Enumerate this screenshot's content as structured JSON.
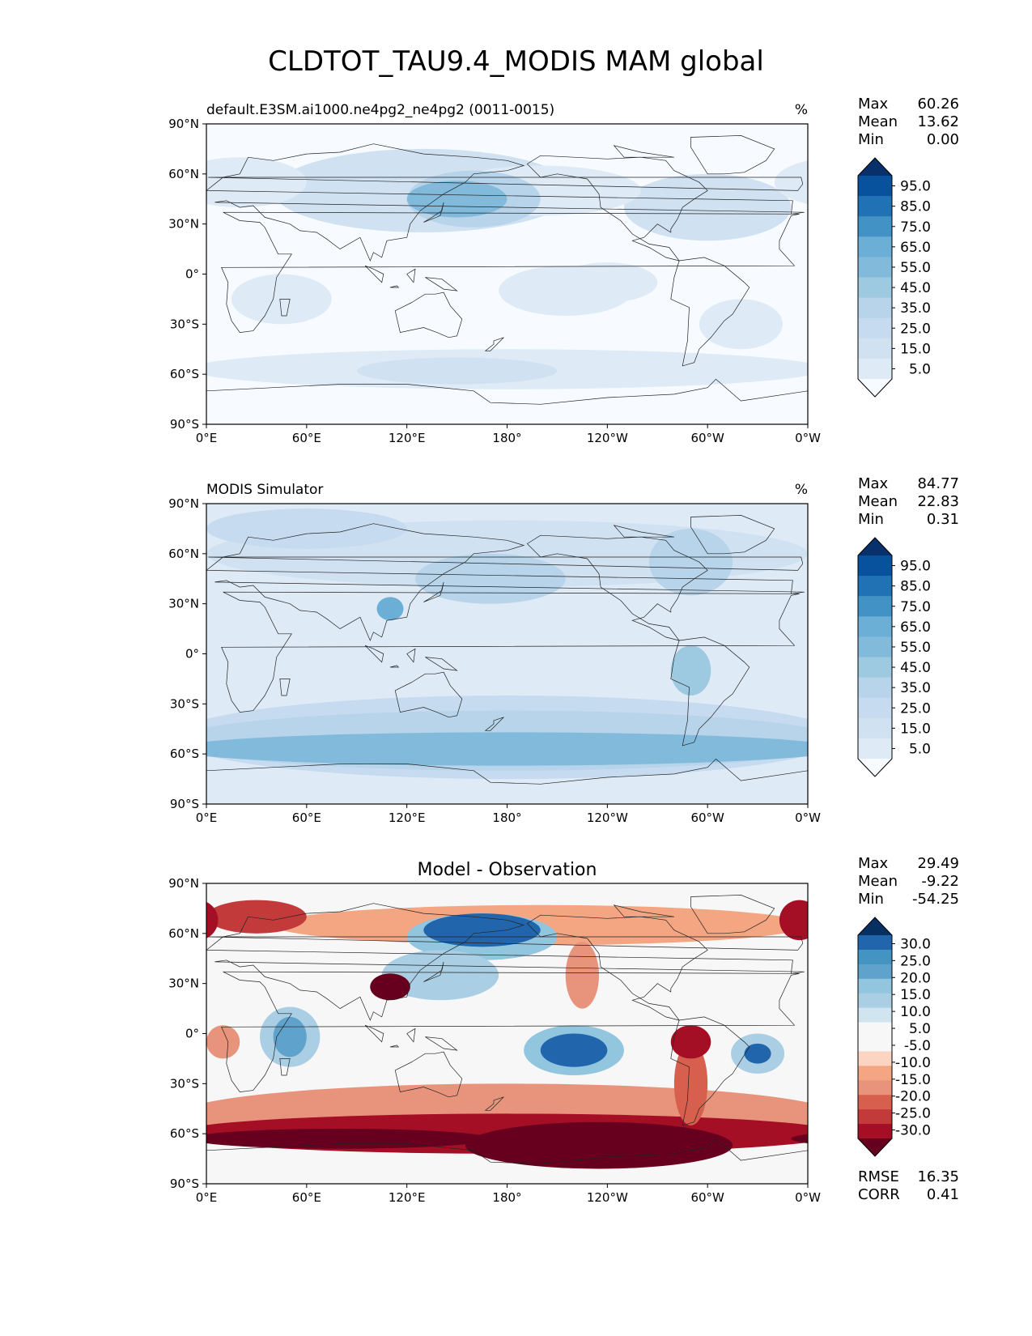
{
  "title": "CLDTOT_TAU9.4_MODIS MAM global",
  "palettes": {
    "blues": [
      "#f7fbff",
      "#deebf7",
      "#d0e1f2",
      "#c6dbef",
      "#b7d4ea",
      "#9ecae1",
      "#82badb",
      "#6baed6",
      "#4292c6",
      "#2171b5",
      "#08519c",
      "#08306b"
    ],
    "diff": [
      "#67001f",
      "#a50f26",
      "#c23a3a",
      "#d6604d",
      "#e8947c",
      "#f4a582",
      "#fbd5c1",
      "#f7f7f7",
      "#f7f7f7",
      "#d1e5f0",
      "#aacfe5",
      "#92c5de",
      "#5fa3cd",
      "#4393c3",
      "#2166ac",
      "#053061"
    ]
  },
  "chart_data": [
    {
      "type": "heatmap",
      "name": "model",
      "left_title": "default.E3SM.ai1000.ne4pg2_ne4pg2 (0011-0015)",
      "units": "%",
      "center_title": "",
      "stats": [
        {
          "label": "Max",
          "value": "60.26"
        },
        {
          "label": "Mean",
          "value": "13.62"
        },
        {
          "label": "Min",
          "value": "0.00"
        }
      ],
      "extra_stats": [],
      "colorbar": {
        "palette": "blues",
        "tick_labels": [
          "95.0",
          "85.0",
          "75.0",
          "65.0",
          "55.0",
          "45.0",
          "35.0",
          "25.0",
          "15.0",
          "5.0"
        ]
      },
      "axes": {
        "xlabels": [
          "0°E",
          "60°E",
          "120°E",
          "180°",
          "120°W",
          "60°W",
          "0°W"
        ],
        "ylabels": [
          "90°N",
          "60°N",
          "30°N",
          "0°",
          "30°S",
          "60°S",
          "90°S"
        ],
        "xlim": [
          0,
          360
        ],
        "ylim": [
          -90,
          90
        ]
      },
      "base_level": 0,
      "blobs": [
        {
          "lon": 150,
          "lat": 45,
          "rx": 30,
          "ry": 11,
          "level": 6
        },
        {
          "lon": 160,
          "lat": 45,
          "rx": 40,
          "ry": 17,
          "level": 4
        },
        {
          "lon": 130,
          "lat": 50,
          "rx": 90,
          "ry": 25,
          "level": 2
        },
        {
          "lon": 300,
          "lat": 40,
          "rx": 50,
          "ry": 20,
          "level": 2
        },
        {
          "lon": 200,
          "lat": 50,
          "rx": 60,
          "ry": 15,
          "level": 1
        },
        {
          "lon": 20,
          "lat": 55,
          "rx": 40,
          "ry": 15,
          "level": 1
        },
        {
          "lon": 180,
          "lat": -57,
          "rx": 190,
          "ry": 12,
          "level": 1
        },
        {
          "lon": 150,
          "lat": -58,
          "rx": 60,
          "ry": 8,
          "level": 2
        },
        {
          "lon": 215,
          "lat": -10,
          "rx": 40,
          "ry": 15,
          "level": 1
        },
        {
          "lon": 45,
          "lat": -15,
          "rx": 30,
          "ry": 15,
          "level": 1
        },
        {
          "lon": 320,
          "lat": -30,
          "rx": 25,
          "ry": 15,
          "level": 1
        },
        {
          "lon": 240,
          "lat": -5,
          "rx": 30,
          "ry": 12,
          "level": 1
        }
      ]
    },
    {
      "type": "heatmap",
      "name": "obs",
      "left_title": "MODIS Simulator",
      "units": "%",
      "center_title": "",
      "stats": [
        {
          "label": "Max",
          "value": "84.77"
        },
        {
          "label": "Mean",
          "value": "22.83"
        },
        {
          "label": "Min",
          "value": "0.31"
        }
      ],
      "extra_stats": [],
      "colorbar": {
        "palette": "blues",
        "tick_labels": [
          "95.0",
          "85.0",
          "75.0",
          "65.0",
          "55.0",
          "45.0",
          "35.0",
          "25.0",
          "15.0",
          "5.0"
        ]
      },
      "axes": {
        "xlabels": [
          "0°E",
          "60°E",
          "120°E",
          "180°",
          "120°W",
          "60°W",
          "0°W"
        ],
        "ylabels": [
          "90°N",
          "60°N",
          "30°N",
          "0°",
          "30°S",
          "60°S",
          "90°S"
        ],
        "xlim": [
          0,
          360
        ],
        "ylim": [
          -90,
          90
        ]
      },
      "base_level": 1,
      "blobs": [
        {
          "lon": 180,
          "lat": -57,
          "rx": 200,
          "ry": 10,
          "level": 6
        },
        {
          "lon": 180,
          "lat": -52,
          "rx": 200,
          "ry": 18,
          "level": 4
        },
        {
          "lon": 180,
          "lat": -50,
          "rx": 200,
          "ry": 25,
          "level": 3
        },
        {
          "lon": 170,
          "lat": 45,
          "rx": 45,
          "ry": 15,
          "level": 4
        },
        {
          "lon": 110,
          "lat": 27,
          "rx": 8,
          "ry": 7,
          "level": 7
        },
        {
          "lon": 290,
          "lat": -10,
          "rx": 12,
          "ry": 15,
          "level": 5
        },
        {
          "lon": 290,
          "lat": 55,
          "rx": 25,
          "ry": 20,
          "level": 4
        },
        {
          "lon": 60,
          "lat": 75,
          "rx": 60,
          "ry": 12,
          "level": 3
        },
        {
          "lon": 180,
          "lat": 60,
          "rx": 180,
          "ry": 20,
          "level": 2
        },
        {
          "lon": 200,
          "lat": 0,
          "rx": 100,
          "ry": 12,
          "level": 1
        }
      ]
    },
    {
      "type": "heatmap",
      "name": "diff",
      "left_title": "",
      "units": "",
      "center_title": "Model - Observation",
      "stats": [
        {
          "label": "Max",
          "value": "29.49"
        },
        {
          "label": "Mean",
          "value": "-9.22"
        },
        {
          "label": "Min",
          "value": "-54.25"
        }
      ],
      "extra_stats": [
        {
          "label": "RMSE",
          "value": "16.35"
        },
        {
          "label": "CORR",
          "value": "0.41"
        }
      ],
      "colorbar": {
        "palette": "diff",
        "tick_labels": [
          "30.0",
          "25.0",
          "20.0",
          "15.0",
          "10.0",
          "5.0",
          "-5.0",
          "-10.0",
          "-15.0",
          "-20.0",
          "-25.0",
          "-30.0"
        ]
      },
      "axes": {
        "xlabels": [
          "0°E",
          "60°E",
          "120°E",
          "180°",
          "120°W",
          "60°W",
          "0°W"
        ],
        "ylabels": [
          "90°N",
          "60°N",
          "30°N",
          "0°",
          "30°S",
          "60°S",
          "90°S"
        ],
        "xlim": [
          0,
          360
        ],
        "ylim": [
          -90,
          90
        ]
      },
      "base_level": 7,
      "blobs": [
        {
          "lon": 180,
          "lat": -50,
          "rx": 200,
          "ry": 20,
          "level": 4
        },
        {
          "lon": 180,
          "lat": -60,
          "rx": 200,
          "ry": 12,
          "level": 1
        },
        {
          "lon": 80,
          "lat": -63,
          "rx": 90,
          "ry": 6,
          "level": 0
        },
        {
          "lon": 235,
          "lat": -67,
          "rx": 80,
          "ry": 14,
          "level": 0
        },
        {
          "lon": 30,
          "lat": 70,
          "rx": 30,
          "ry": 10,
          "level": 2
        },
        {
          "lon": 355,
          "lat": 68,
          "rx": 12,
          "ry": 12,
          "level": 1
        },
        {
          "lon": 110,
          "lat": 28,
          "rx": 12,
          "ry": 8,
          "level": 0
        },
        {
          "lon": 225,
          "lat": 35,
          "rx": 10,
          "ry": 20,
          "level": 4
        },
        {
          "lon": 290,
          "lat": -5,
          "rx": 12,
          "ry": 10,
          "level": 1
        },
        {
          "lon": 290,
          "lat": -30,
          "rx": 10,
          "ry": 25,
          "level": 3
        },
        {
          "lon": 10,
          "lat": -5,
          "rx": 10,
          "ry": 10,
          "level": 4
        },
        {
          "lon": 200,
          "lat": 65,
          "rx": 160,
          "ry": 12,
          "level": 5
        },
        {
          "lon": 165,
          "lat": 62,
          "rx": 35,
          "ry": 10,
          "level": 14
        },
        {
          "lon": 165,
          "lat": 58,
          "rx": 45,
          "ry": 14,
          "level": 11
        },
        {
          "lon": 140,
          "lat": 35,
          "rx": 35,
          "ry": 15,
          "level": 10
        },
        {
          "lon": 220,
          "lat": -10,
          "rx": 20,
          "ry": 10,
          "level": 14
        },
        {
          "lon": 220,
          "lat": -10,
          "rx": 30,
          "ry": 15,
          "level": 11
        },
        {
          "lon": 330,
          "lat": -12,
          "rx": 8,
          "ry": 6,
          "level": 14
        },
        {
          "lon": 330,
          "lat": -12,
          "rx": 16,
          "ry": 12,
          "level": 10
        },
        {
          "lon": 50,
          "lat": -2,
          "rx": 10,
          "ry": 12,
          "level": 12
        },
        {
          "lon": 50,
          "lat": -2,
          "rx": 18,
          "ry": 18,
          "level": 10
        }
      ]
    }
  ]
}
